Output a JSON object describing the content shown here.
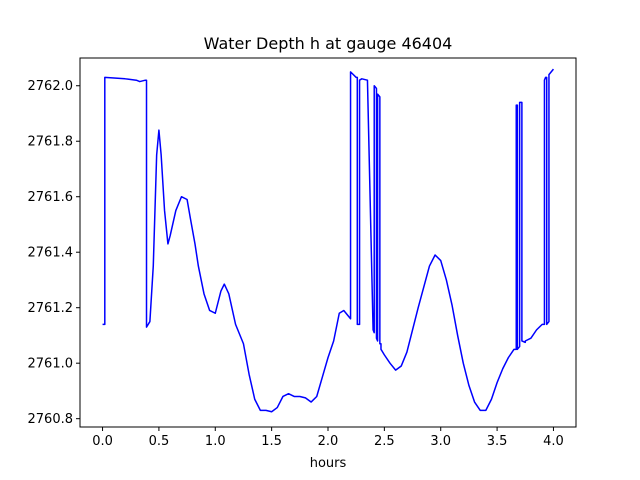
{
  "chart_data": {
    "type": "line",
    "title": "Water Depth h at gauge 46404",
    "xlabel": "hours",
    "ylabel": "",
    "xlim": [
      -0.2,
      4.2
    ],
    "ylim": [
      2760.77,
      2762.1
    ],
    "xticks": [
      0.0,
      0.5,
      1.0,
      1.5,
      2.0,
      2.5,
      3.0,
      3.5,
      4.0
    ],
    "xtick_labels": [
      "0.0",
      "0.5",
      "1.0",
      "1.5",
      "2.0",
      "2.5",
      "3.0",
      "3.5",
      "4.0"
    ],
    "yticks": [
      2760.8,
      2761.0,
      2761.2,
      2761.4,
      2761.6,
      2761.8,
      2762.0
    ],
    "ytick_labels": [
      "2760.8",
      "2761.0",
      "2761.2",
      "2761.4",
      "2761.6",
      "2761.8",
      "2762.0"
    ],
    "grid": false,
    "series": [
      {
        "color": "#0000ff",
        "x": [
          0.0,
          0.02,
          0.02,
          0.2,
          0.3,
          0.33,
          0.38,
          0.39,
          0.39,
          0.42,
          0.45,
          0.48,
          0.5,
          0.52,
          0.55,
          0.58,
          0.6,
          0.65,
          0.7,
          0.75,
          0.78,
          0.82,
          0.85,
          0.9,
          0.95,
          1.0,
          1.05,
          1.08,
          1.12,
          1.18,
          1.25,
          1.3,
          1.35,
          1.4,
          1.45,
          1.5,
          1.55,
          1.6,
          1.65,
          1.7,
          1.75,
          1.8,
          1.85,
          1.9,
          1.95,
          2.0,
          2.05,
          2.08,
          2.1,
          2.14,
          2.18,
          2.2,
          2.2,
          2.25,
          2.26,
          2.26,
          2.28,
          2.28,
          2.3,
          2.35,
          2.4,
          2.4,
          2.41,
          2.41,
          2.43,
          2.43,
          2.44,
          2.44,
          2.46,
          2.46,
          2.47,
          2.47,
          2.5,
          2.55,
          2.6,
          2.65,
          2.7,
          2.8,
          2.9,
          2.95,
          3.0,
          3.05,
          3.1,
          3.15,
          3.2,
          3.25,
          3.3,
          3.35,
          3.4,
          3.45,
          3.5,
          3.55,
          3.6,
          3.65,
          3.67,
          3.67,
          3.68,
          3.68,
          3.7,
          3.7,
          3.72,
          3.72,
          3.75,
          3.75,
          3.8,
          3.85,
          3.9,
          3.92,
          3.92,
          3.93,
          3.94,
          3.94,
          3.96,
          3.96,
          4.0
        ],
        "y": [
          2761.14,
          2761.14,
          2762.03,
          2762.025,
          2762.02,
          2762.015,
          2762.02,
          2762.02,
          2761.13,
          2761.15,
          2761.35,
          2761.75,
          2761.84,
          2761.75,
          2761.55,
          2761.43,
          2761.46,
          2761.55,
          2761.6,
          2761.59,
          2761.52,
          2761.43,
          2761.35,
          2761.25,
          2761.19,
          2761.18,
          2761.26,
          2761.285,
          2761.25,
          2761.14,
          2761.07,
          2760.96,
          2760.87,
          2760.83,
          2760.83,
          2760.825,
          2760.84,
          2760.88,
          2760.89,
          2760.88,
          2760.88,
          2760.875,
          2760.86,
          2760.88,
          2760.95,
          2761.02,
          2761.08,
          2761.14,
          2761.18,
          2761.19,
          2761.17,
          2761.16,
          2762.05,
          2762.03,
          2762.03,
          2761.14,
          2761.14,
          2762.02,
          2762.025,
          2762.02,
          2761.12,
          2761.12,
          2761.11,
          2762.0,
          2761.99,
          2761.09,
          2761.08,
          2761.97,
          2761.96,
          2761.07,
          2761.07,
          2761.05,
          2761.03,
          2761.0,
          2760.975,
          2760.99,
          2761.04,
          2761.2,
          2761.35,
          2761.39,
          2761.37,
          2761.3,
          2761.21,
          2761.1,
          2761.0,
          2760.92,
          2760.86,
          2760.83,
          2760.83,
          2760.87,
          2760.93,
          2760.98,
          2761.02,
          2761.05,
          2761.05,
          2761.93,
          2761.93,
          2761.05,
          2761.06,
          2761.94,
          2761.94,
          2761.08,
          2761.075,
          2761.08,
          2761.09,
          2761.12,
          2761.14,
          2761.14,
          2762.02,
          2762.03,
          2762.03,
          2761.14,
          2761.15,
          2762.04,
          2762.06
        ]
      }
    ]
  }
}
